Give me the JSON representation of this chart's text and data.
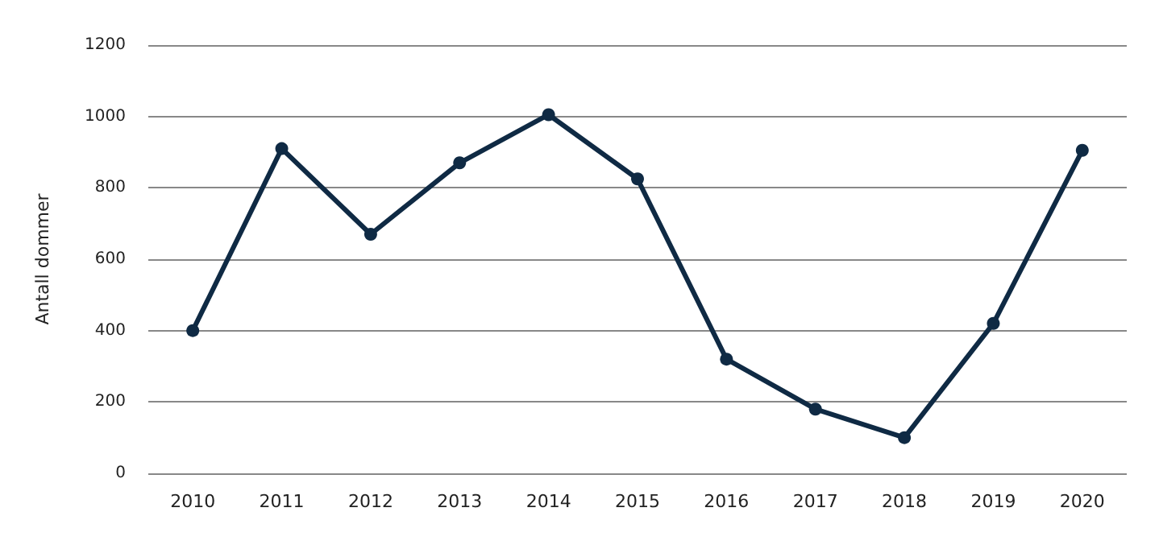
{
  "chart_data": {
    "type": "line",
    "ylabel": "Antall dommer",
    "categories": [
      "2010",
      "2011",
      "2012",
      "2013",
      "2014",
      "2015",
      "2016",
      "2017",
      "2018",
      "2019",
      "2020"
    ],
    "series": [
      {
        "color": "#0f2a44",
        "values": [
          400,
          910,
          670,
          870,
          1005,
          825,
          320,
          180,
          100,
          420,
          905
        ]
      }
    ],
    "ylim": [
      0,
      1200
    ],
    "yticks": [
      0,
      200,
      400,
      600,
      800,
      1000,
      1200
    ],
    "grid": "y",
    "marker": "circle",
    "line_style": "solid"
  }
}
